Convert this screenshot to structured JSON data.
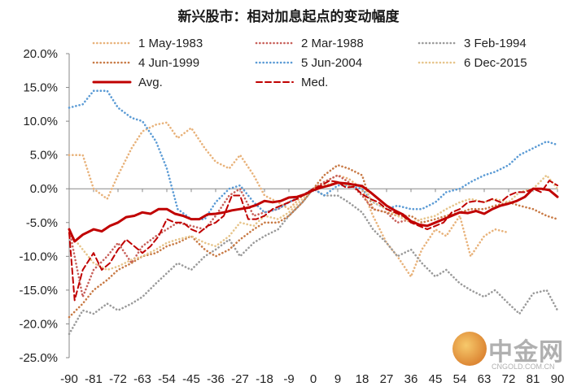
{
  "chart_data": {
    "type": "line",
    "title": "新兴股市：相对加息起点的变动幅度",
    "xlabel": "",
    "ylabel": "",
    "ylim": [
      -0.25,
      0.2
    ],
    "xlim": [
      -90,
      90
    ],
    "x_ticks": [
      -90,
      -81,
      -72,
      -63,
      -54,
      -45,
      -36,
      -27,
      -18,
      -9,
      0,
      9,
      18,
      27,
      36,
      45,
      54,
      63,
      72,
      81,
      90
    ],
    "y_ticks": [
      "20.0%",
      "15.0%",
      "10.0%",
      "5.0%",
      "0.0%",
      "-5.0%",
      "-10.0%",
      "-15.0%",
      "-20.0%",
      "-25.0%"
    ],
    "grid": false,
    "legend": "top",
    "series": [
      {
        "name": "1 May-1983",
        "color": "#e8b27a",
        "style": "dotted",
        "x": [
          -90,
          -85,
          -81,
          -76,
          -72,
          -67,
          -63,
          -58,
          -54,
          -50,
          -45,
          -40,
          -36,
          -31,
          -27,
          -22,
          -18,
          -13,
          -9,
          -4,
          0,
          4,
          9,
          13,
          18,
          22,
          27,
          31,
          36,
          40,
          45,
          49,
          54,
          58,
          63,
          67,
          72
        ],
        "y": [
          0.05,
          0.05,
          0.0,
          -0.015,
          0.02,
          0.06,
          0.085,
          0.095,
          0.098,
          0.075,
          0.09,
          0.06,
          0.04,
          0.03,
          0.05,
          0.02,
          -0.01,
          -0.02,
          -0.03,
          -0.01,
          0.0,
          0.01,
          0.02,
          0.015,
          0.0,
          -0.04,
          -0.08,
          -0.1,
          -0.13,
          -0.09,
          -0.06,
          -0.07,
          -0.04,
          -0.1,
          -0.07,
          -0.06,
          -0.065
        ]
      },
      {
        "name": "2 Mar-1988",
        "color": "#c8605a",
        "style": "dotted",
        "x": [
          -90,
          -85,
          -81,
          -76,
          -72,
          -67,
          -63,
          -58,
          -54,
          -50,
          -45,
          -40,
          -36,
          -31,
          -27,
          -22,
          -18,
          -13,
          -9,
          -4,
          0,
          4,
          9,
          13,
          18,
          22,
          27,
          31,
          36
        ],
        "y": [
          -0.06,
          -0.16,
          -0.12,
          -0.1,
          -0.08,
          -0.11,
          -0.085,
          -0.07,
          -0.06,
          -0.05,
          -0.055,
          -0.06,
          -0.04,
          -0.01,
          0.0,
          -0.04,
          -0.035,
          -0.03,
          -0.02,
          -0.01,
          0.0,
          0.01,
          0.02,
          0.01,
          -0.01,
          -0.03,
          -0.035,
          -0.05,
          -0.045
        ]
      },
      {
        "name": "3 Feb-1994",
        "color": "#9a9a9a",
        "style": "dotted",
        "x": [
          -90,
          -85,
          -81,
          -76,
          -72,
          -67,
          -63,
          -58,
          -54,
          -50,
          -45,
          -40,
          -36,
          -31,
          -27,
          -22,
          -18,
          -13,
          -9,
          -4,
          0,
          4,
          9,
          13,
          18,
          22,
          27,
          31,
          36,
          40,
          45,
          49,
          54,
          58,
          63,
          67,
          72,
          76,
          81,
          86,
          90
        ],
        "y": [
          -0.215,
          -0.18,
          -0.185,
          -0.17,
          -0.18,
          -0.17,
          -0.16,
          -0.14,
          -0.125,
          -0.11,
          -0.12,
          -0.1,
          -0.09,
          -0.075,
          -0.1,
          -0.08,
          -0.07,
          -0.06,
          -0.04,
          -0.02,
          0.0,
          -0.01,
          -0.01,
          -0.02,
          -0.035,
          -0.06,
          -0.08,
          -0.1,
          -0.09,
          -0.11,
          -0.13,
          -0.12,
          -0.14,
          -0.15,
          -0.16,
          -0.15,
          -0.17,
          -0.185,
          -0.155,
          -0.15,
          -0.18
        ]
      },
      {
        "name": "4 Jun-1999",
        "color": "#c87a45",
        "style": "dotted",
        "x": [
          -90,
          -85,
          -81,
          -76,
          -72,
          -67,
          -63,
          -58,
          -54,
          -50,
          -45,
          -40,
          -36,
          -31,
          -27,
          -22,
          -18,
          -13,
          -9,
          -4,
          0,
          4,
          9,
          13,
          18,
          22,
          27,
          31,
          36,
          40,
          45,
          49,
          54,
          58,
          63,
          67,
          72,
          76,
          81,
          86,
          90
        ],
        "y": [
          -0.19,
          -0.17,
          -0.15,
          -0.135,
          -0.12,
          -0.11,
          -0.1,
          -0.095,
          -0.085,
          -0.08,
          -0.07,
          -0.09,
          -0.1,
          -0.09,
          -0.075,
          -0.06,
          -0.05,
          -0.05,
          -0.04,
          -0.02,
          0.0,
          0.02,
          0.035,
          0.03,
          0.02,
          -0.03,
          -0.035,
          -0.04,
          -0.04,
          -0.05,
          -0.045,
          -0.04,
          -0.035,
          -0.03,
          -0.03,
          -0.025,
          -0.02,
          -0.025,
          -0.03,
          -0.04,
          -0.045
        ]
      },
      {
        "name": "5 Jun-2004",
        "color": "#5b9bd5",
        "style": "dotted",
        "x": [
          -90,
          -85,
          -81,
          -76,
          -72,
          -67,
          -63,
          -58,
          -54,
          -50,
          -45,
          -40,
          -36,
          -31,
          -27,
          -22,
          -18,
          -13,
          -9,
          -4,
          0,
          4,
          9,
          13,
          18,
          22,
          27,
          31,
          36,
          40,
          45,
          49,
          54,
          58,
          63,
          67,
          72,
          76,
          81,
          86,
          90
        ],
        "y": [
          0.12,
          0.125,
          0.145,
          0.145,
          0.12,
          0.105,
          0.1,
          0.07,
          0.03,
          -0.03,
          -0.045,
          -0.045,
          -0.02,
          0.0,
          0.005,
          -0.02,
          -0.035,
          -0.03,
          -0.02,
          -0.01,
          0.0,
          -0.01,
          0.005,
          0.005,
          0.0,
          -0.02,
          -0.03,
          -0.025,
          -0.03,
          -0.03,
          -0.02,
          -0.005,
          0.0,
          0.01,
          0.02,
          0.025,
          0.035,
          0.05,
          0.06,
          0.07,
          0.065
        ]
      },
      {
        "name": "6 Dec-2015",
        "color": "#e6c48a",
        "style": "dotted",
        "x": [
          -90,
          -85,
          -81,
          -76,
          -72,
          -67,
          -63,
          -58,
          -54,
          -50,
          -45,
          -40,
          -36,
          -31,
          -27,
          -22,
          -18,
          -13,
          -9,
          -4,
          0,
          4,
          9,
          13,
          18,
          22,
          27,
          31,
          36,
          40,
          45,
          49,
          54,
          58,
          63,
          67,
          72,
          76,
          81,
          86,
          90
        ],
        "y": [
          -0.065,
          -0.09,
          -0.11,
          -0.12,
          -0.115,
          -0.105,
          -0.1,
          -0.09,
          -0.08,
          -0.075,
          -0.07,
          -0.08,
          -0.085,
          -0.07,
          -0.05,
          -0.055,
          -0.04,
          -0.045,
          -0.035,
          -0.015,
          0.0,
          0.005,
          0.01,
          0.005,
          0.005,
          -0.02,
          -0.03,
          -0.04,
          -0.05,
          -0.045,
          -0.04,
          -0.03,
          -0.02,
          -0.015,
          -0.02,
          -0.015,
          -0.02,
          -0.005,
          0.0,
          0.02,
          0.0
        ]
      },
      {
        "name": "Avg.",
        "color": "#c00000",
        "style": "solid",
        "x": [
          -90,
          -88,
          -85,
          -81,
          -78,
          -75,
          -72,
          -69,
          -66,
          -63,
          -60,
          -57,
          -54,
          -51,
          -48,
          -45,
          -42,
          -39,
          -36,
          -33,
          -30,
          -27,
          -24,
          -21,
          -18,
          -15,
          -12,
          -9,
          -6,
          -3,
          0,
          3,
          6,
          9,
          12,
          15,
          18,
          21,
          24,
          27,
          30,
          33,
          36,
          39,
          42,
          45,
          48,
          51,
          54,
          57,
          60,
          63,
          66,
          69,
          72,
          75,
          78,
          81,
          84,
          87,
          90
        ],
        "y": [
          -0.06,
          -0.078,
          -0.068,
          -0.06,
          -0.063,
          -0.055,
          -0.05,
          -0.042,
          -0.04,
          -0.035,
          -0.037,
          -0.03,
          -0.03,
          -0.037,
          -0.04,
          -0.045,
          -0.045,
          -0.038,
          -0.037,
          -0.035,
          -0.032,
          -0.03,
          -0.028,
          -0.024,
          -0.018,
          -0.02,
          -0.018,
          -0.013,
          -0.012,
          -0.008,
          -0.002,
          0.002,
          0.005,
          0.009,
          0.008,
          0.006,
          0.004,
          -0.005,
          -0.015,
          -0.025,
          -0.032,
          -0.038,
          -0.048,
          -0.053,
          -0.055,
          -0.05,
          -0.045,
          -0.04,
          -0.035,
          -0.036,
          -0.033,
          -0.037,
          -0.03,
          -0.025,
          -0.022,
          -0.018,
          -0.012,
          0.0,
          0.0,
          -0.002,
          -0.012
        ]
      },
      {
        "name": "Med.",
        "color": "#c00000",
        "style": "dashed",
        "x": [
          -90,
          -88,
          -85,
          -81,
          -78,
          -75,
          -72,
          -69,
          -66,
          -63,
          -60,
          -57,
          -54,
          -51,
          -48,
          -45,
          -42,
          -39,
          -36,
          -33,
          -30,
          -27,
          -24,
          -21,
          -18,
          -15,
          -12,
          -9,
          -6,
          -3,
          0,
          3,
          6,
          9,
          12,
          15,
          18,
          21,
          24,
          27,
          30,
          33,
          36,
          39,
          42,
          45,
          48,
          51,
          54,
          57,
          60,
          63,
          66,
          69,
          72,
          75,
          78,
          81,
          84,
          87,
          90
        ],
        "y": [
          -0.065,
          -0.165,
          -0.12,
          -0.095,
          -0.12,
          -0.11,
          -0.09,
          -0.075,
          -0.085,
          -0.095,
          -0.085,
          -0.07,
          -0.045,
          -0.05,
          -0.05,
          -0.06,
          -0.065,
          -0.055,
          -0.05,
          -0.04,
          -0.01,
          -0.01,
          -0.045,
          -0.045,
          -0.04,
          -0.03,
          -0.025,
          -0.02,
          -0.015,
          -0.008,
          0.0,
          0.005,
          0.012,
          0.01,
          0.002,
          0.003,
          -0.008,
          -0.015,
          -0.02,
          -0.03,
          -0.035,
          -0.04,
          -0.05,
          -0.055,
          -0.06,
          -0.055,
          -0.05,
          -0.035,
          -0.03,
          -0.02,
          -0.018,
          -0.02,
          -0.015,
          -0.02,
          -0.01,
          -0.005,
          -0.005,
          0.0,
          -0.005,
          0.012,
          0.005
        ]
      }
    ]
  },
  "watermark": {
    "brand": "中金网",
    "url": "CNGOLD.COM.CN"
  }
}
